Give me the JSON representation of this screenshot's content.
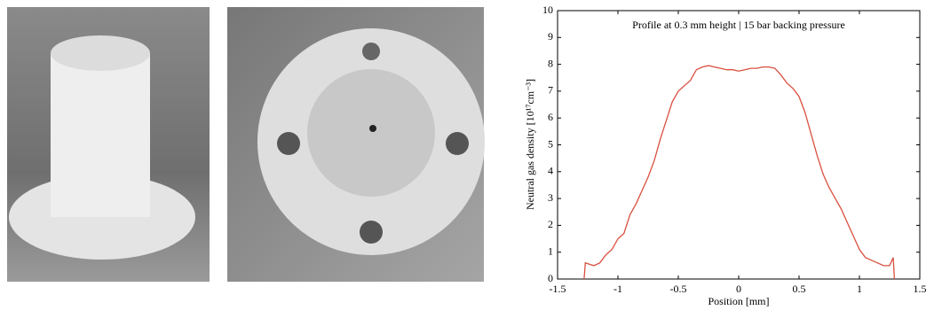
{
  "chart_data": {
    "type": "line",
    "title": "Profile at 0.3 mm height | 15 bar backing pressure",
    "x_label": "Position [mm]",
    "y_label": "Neutral gas density [10¹⁷cm⁻³]",
    "xlim": [
      -1.5,
      1.5
    ],
    "xticks": [
      -1.5,
      -1,
      -0.5,
      0,
      0.5,
      1,
      1.5
    ],
    "ylim": [
      0,
      10
    ],
    "yticks": [
      0,
      1,
      2,
      3,
      4,
      5,
      6,
      7,
      8,
      9,
      10
    ],
    "grid": false,
    "x": [
      -1.28,
      -1.27,
      -1.2,
      -1.15,
      -1.1,
      -1.05,
      -1.0,
      -0.95,
      -0.9,
      -0.85,
      -0.8,
      -0.75,
      -0.7,
      -0.65,
      -0.6,
      -0.55,
      -0.5,
      -0.45,
      -0.4,
      -0.35,
      -0.3,
      -0.25,
      -0.2,
      -0.15,
      -0.1,
      -0.05,
      0,
      0.05,
      0.1,
      0.15,
      0.2,
      0.25,
      0.3,
      0.35,
      0.4,
      0.45,
      0.5,
      0.55,
      0.6,
      0.65,
      0.7,
      0.75,
      0.8,
      0.85,
      0.9,
      0.95,
      1.0,
      1.05,
      1.1,
      1.15,
      1.2,
      1.25,
      1.28,
      1.29
    ],
    "series": [
      {
        "color": "#d9503f",
        "values": [
          0,
          0.6,
          0.5,
          0.6,
          0.9,
          1.1,
          1.5,
          1.7,
          2.4,
          2.8,
          3.3,
          3.8,
          4.4,
          5.2,
          5.9,
          6.6,
          7.0,
          7.2,
          7.4,
          7.8,
          7.9,
          7.95,
          7.9,
          7.85,
          7.8,
          7.8,
          7.75,
          7.8,
          7.85,
          7.85,
          7.9,
          7.9,
          7.85,
          7.6,
          7.3,
          7.1,
          6.8,
          6.2,
          5.4,
          4.6,
          3.9,
          3.4,
          3.0,
          2.6,
          2.1,
          1.6,
          1.1,
          0.8,
          0.7,
          0.6,
          0.5,
          0.5,
          0.8,
          0
        ]
      }
    ]
  }
}
